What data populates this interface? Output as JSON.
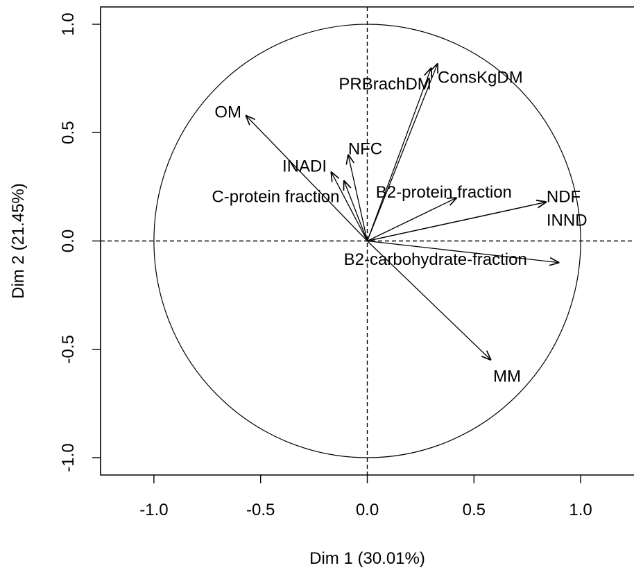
{
  "chart_data": {
    "type": "scatter",
    "subtype": "pca-variable-correlation-circle",
    "title": "",
    "xlabel": "Dim 1 (30.01%)",
    "ylabel": "Dim 2 (21.45%)",
    "xlim": [
      -1.25,
      1.25
    ],
    "ylim": [
      -1.08,
      1.08
    ],
    "xticks": [
      -1.0,
      -0.5,
      0.0,
      0.5,
      1.0
    ],
    "yticks": [
      -1.0,
      -0.5,
      0.0,
      0.5,
      1.0
    ],
    "xtick_labels": [
      "-1.0",
      "-0.5",
      "0.0",
      "0.5",
      "1.0"
    ],
    "ytick_labels": [
      "-1.0",
      "-0.5",
      "0.0",
      "0.5",
      "1.0"
    ],
    "unit_circle": true,
    "reference_lines": "dashed at x = 0 and y = 0",
    "grid": false,
    "colors": {
      "ink": "#000000",
      "background": "#ffffff"
    },
    "variables": [
      {
        "name": "PRBrachDM",
        "x": 0.3,
        "y": 0.8,
        "label_x": 0.3,
        "label_y": 0.72,
        "anchor": "end"
      },
      {
        "name": "ConsKgDM",
        "x": 0.33,
        "y": 0.82,
        "label_x": 0.33,
        "label_y": 0.75,
        "anchor": "start"
      },
      {
        "name": "OM",
        "x": -0.57,
        "y": 0.58,
        "label_x": -0.59,
        "label_y": 0.59,
        "anchor": "end"
      },
      {
        "name": "NFC",
        "x": -0.09,
        "y": 0.4,
        "label_x": -0.09,
        "label_y": 0.42,
        "anchor": "start"
      },
      {
        "name": "INADI",
        "x": -0.17,
        "y": 0.32,
        "label_x": -0.19,
        "label_y": 0.34,
        "anchor": "end"
      },
      {
        "name": "C-protein fraction",
        "x": -0.11,
        "y": 0.28,
        "label_x": -0.13,
        "label_y": 0.2,
        "anchor": "end"
      },
      {
        "name": "B2-protein fraction",
        "x": 0.42,
        "y": 0.2,
        "label_x": 0.04,
        "label_y": 0.22,
        "anchor": "start"
      },
      {
        "name": "NDF",
        "x": 0.84,
        "y": 0.18,
        "label_x": 0.84,
        "label_y": 0.2,
        "anchor": "start"
      },
      {
        "name": "INND",
        "x": 0.84,
        "y": 0.18,
        "label_x": 0.84,
        "label_y": 0.09,
        "anchor": "start"
      },
      {
        "name": "B2-carbohydrate-fraction",
        "x": 0.9,
        "y": -0.1,
        "label_x": -0.11,
        "label_y": -0.09,
        "anchor": "start"
      },
      {
        "name": "MM",
        "x": 0.58,
        "y": -0.55,
        "label_x": 0.59,
        "label_y": -0.63,
        "anchor": "start"
      }
    ]
  }
}
